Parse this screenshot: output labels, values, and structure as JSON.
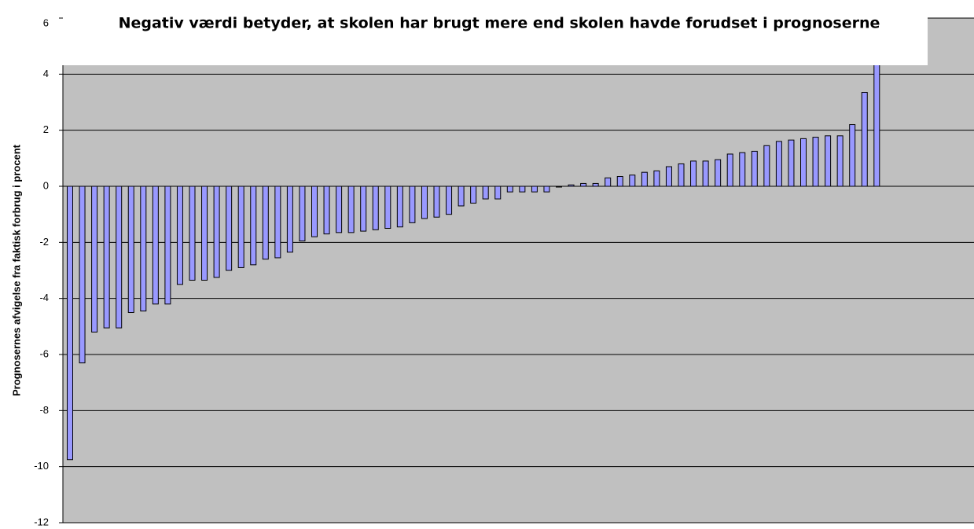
{
  "chart_data": {
    "type": "bar",
    "title": "Negativ værdi betyder, at skolen har brugt mere end skolen havde forudset i prognoserne",
    "y_label": "Prognosernes afvigelse fra faktisk forbrug i procent",
    "values": [
      -9.75,
      -6.3,
      -5.2,
      -5.05,
      -5.05,
      -4.5,
      -4.45,
      -4.2,
      -4.2,
      -3.5,
      -3.35,
      -3.35,
      -3.25,
      -3.0,
      -2.9,
      -2.8,
      -2.6,
      -2.55,
      -2.35,
      -1.95,
      -1.8,
      -1.7,
      -1.65,
      -1.65,
      -1.6,
      -1.55,
      -1.5,
      -1.45,
      -1.3,
      -1.15,
      -1.1,
      -1.0,
      -0.7,
      -0.6,
      -0.45,
      -0.45,
      -0.2,
      -0.2,
      -0.2,
      -0.2,
      0.0,
      0.05,
      0.1,
      0.1,
      0.3,
      0.35,
      0.4,
      0.5,
      0.55,
      0.7,
      0.8,
      0.9,
      0.9,
      0.95,
      1.15,
      1.2,
      1.25,
      1.45,
      1.6,
      1.65,
      1.7,
      1.75,
      1.8,
      1.8,
      2.2,
      3.35,
      5
    ],
    "color": "#9999ff",
    "ylim": [
      -12,
      6
    ],
    "yticks": [
      -12,
      -10,
      -8,
      -6,
      -4,
      -2,
      0,
      2,
      4,
      6
    ],
    "grid": true
  }
}
